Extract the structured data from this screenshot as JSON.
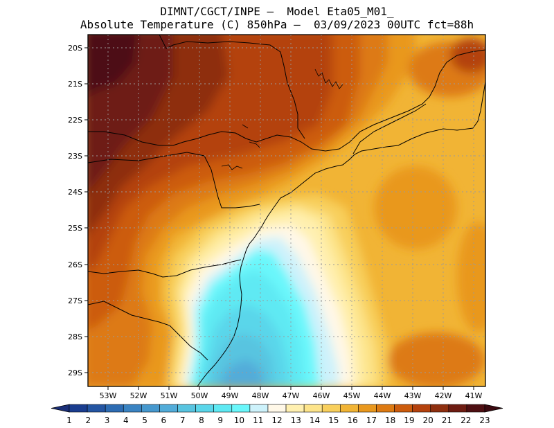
{
  "header": {
    "title_line1": "DIMNT/CGCT/INPE –  Model Eta05_M01_",
    "title_line2": "Absolute Temperature (C) 850hPa –  03/09/2023 00UTC fct=88h"
  },
  "map": {
    "lon_labels": [
      "53W",
      "52W",
      "51W",
      "50W",
      "49W",
      "48W",
      "47W",
      "46W",
      "45W",
      "44W",
      "43W",
      "42W",
      "41W"
    ],
    "lat_labels": [
      "20S",
      "21S",
      "22S",
      "23S",
      "24S",
      "25S",
      "26S",
      "27S",
      "28S",
      "29S"
    ],
    "variable": "Absolute Temperature",
    "units": "C",
    "level": "850hPa"
  },
  "colorbar": {
    "labels": [
      "1",
      "2",
      "3",
      "4",
      "5",
      "6",
      "7",
      "8",
      "9",
      "10",
      "11",
      "12",
      "13",
      "14",
      "15",
      "16",
      "17",
      "18",
      "19",
      "20",
      "21",
      "22",
      "23"
    ],
    "colors": [
      "#1a3d8f",
      "#2455a2",
      "#2d6cb3",
      "#3a83c2",
      "#4698ce",
      "#52acd9",
      "#58c4e0",
      "#5ad6ea",
      "#5ee9f3",
      "#6af7fb",
      "#cdf2fb",
      "#fff8e8",
      "#fff0b0",
      "#fde48a",
      "#f8cf5c",
      "#f1b435",
      "#e9981e",
      "#dd7a12",
      "#cc5c0d",
      "#b4420d",
      "#8e2f0f",
      "#6e1c12",
      "#4e0f12"
    ],
    "low_arrow_color": "#1a2f78",
    "high_arrow_color": "#3b0a10"
  }
}
